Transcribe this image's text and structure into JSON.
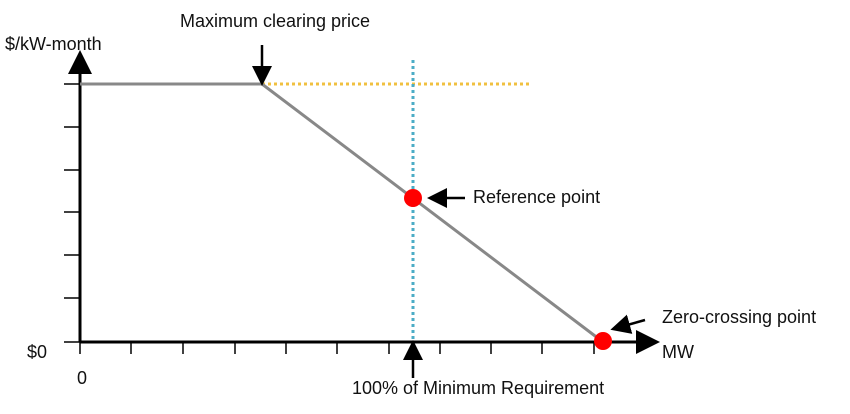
{
  "axes": {
    "y_label": "$/kW-month",
    "y_origin": "$0",
    "x_origin": "0",
    "x_label": "MW"
  },
  "annotations": {
    "max_price": "Maximum clearing price",
    "reference": "Reference point",
    "zero_crossing": "Zero-crossing point",
    "requirement": "100% of Minimum Requirement"
  }
}
